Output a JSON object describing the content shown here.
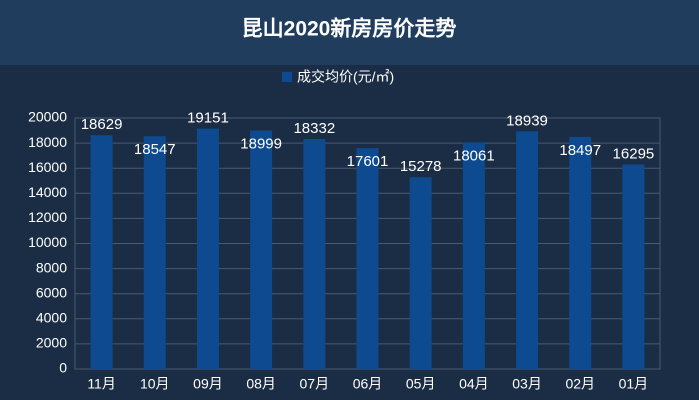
{
  "chart_data": {
    "type": "bar",
    "title": "昆山2020新房房价走势",
    "categories": [
      "11月",
      "10月",
      "09月",
      "08月",
      "07月",
      "06月",
      "05月",
      "04月",
      "03月",
      "02月",
      "01月"
    ],
    "series": [
      {
        "name": "成交均价(元/㎡)",
        "color": "#0d4a8f",
        "values": [
          18629,
          18547,
          19151,
          18999,
          18332,
          17601,
          15278,
          18061,
          18939,
          18497,
          16295
        ]
      }
    ],
    "ylim": [
      0,
      20000
    ],
    "yticks": [
      0,
      2000,
      4000,
      6000,
      8000,
      10000,
      12000,
      14000,
      16000,
      18000,
      20000
    ],
    "grid": true
  }
}
